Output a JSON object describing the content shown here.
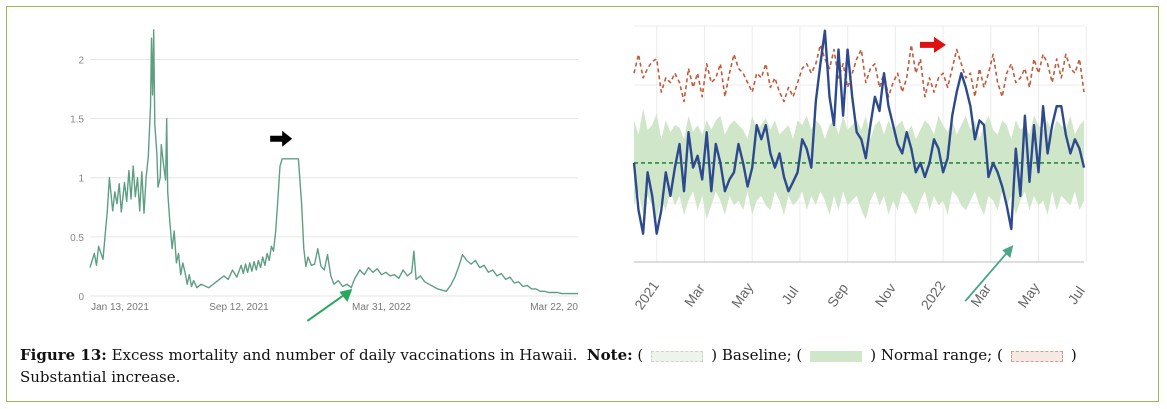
{
  "chart_data": [
    {
      "type": "line",
      "title": "",
      "xlabel": "",
      "ylabel": "",
      "x_tick_labels": [
        "Jan 13, 2021",
        "Sep 12, 2021",
        "Mar 31, 2022",
        "Mar 22, 20"
      ],
      "y_tick_labels": [
        "0",
        "0.5",
        "1",
        "1.5",
        "2"
      ],
      "ylim": [
        0,
        2.3
      ],
      "grid": "horizontal",
      "series": [
        {
          "color": "#5e9f83",
          "points": [
            [
              0,
              0.24
            ],
            [
              4,
              0.36
            ],
            [
              6,
              0.26
            ],
            [
              8,
              0.42
            ],
            [
              12,
              0.31
            ],
            [
              16,
              0.72
            ],
            [
              18,
              1.0
            ],
            [
              21,
              0.72
            ],
            [
              23,
              0.88
            ],
            [
              25,
              0.78
            ],
            [
              27,
              0.95
            ],
            [
              29,
              0.71
            ],
            [
              32,
              0.96
            ],
            [
              34,
              0.8
            ],
            [
              36,
              1.06
            ],
            [
              38,
              0.82
            ],
            [
              40,
              1.1
            ],
            [
              42,
              0.84
            ],
            [
              44,
              1.0
            ],
            [
              46,
              0.72
            ],
            [
              48,
              1.05
            ],
            [
              50,
              0.7
            ],
            [
              52,
              1.0
            ],
            [
              54,
              1.18
            ],
            [
              56,
              1.6
            ],
            [
              57,
              2.18
            ],
            [
              58,
              1.7
            ],
            [
              59,
              2.25
            ],
            [
              60,
              1.45
            ],
            [
              62,
              1.2
            ],
            [
              63,
              0.92
            ],
            [
              65,
              1.0
            ],
            [
              66,
              1.28
            ],
            [
              68,
              1.12
            ],
            [
              70,
              0.98
            ],
            [
              71,
              1.5
            ],
            [
              72,
              0.88
            ],
            [
              74,
              0.62
            ],
            [
              76,
              0.4
            ],
            [
              78,
              0.55
            ],
            [
              80,
              0.28
            ],
            [
              82,
              0.36
            ],
            [
              84,
              0.18
            ],
            [
              86,
              0.28
            ],
            [
              88,
              0.2
            ],
            [
              90,
              0.1
            ],
            [
              92,
              0.18
            ],
            [
              94,
              0.08
            ],
            [
              96,
              0.13
            ],
            [
              99,
              0.07
            ],
            [
              103,
              0.1
            ],
            [
              110,
              0.07
            ],
            [
              117,
              0.12
            ],
            [
              124,
              0.17
            ],
            [
              128,
              0.14
            ],
            [
              132,
              0.22
            ],
            [
              136,
              0.16
            ],
            [
              140,
              0.26
            ],
            [
              142,
              0.19
            ],
            [
              144,
              0.27
            ],
            [
              146,
              0.2
            ],
            [
              148,
              0.28
            ],
            [
              150,
              0.21
            ],
            [
              152,
              0.29
            ],
            [
              154,
              0.22
            ],
            [
              156,
              0.3
            ],
            [
              158,
              0.24
            ],
            [
              160,
              0.33
            ],
            [
              162,
              0.26
            ],
            [
              164,
              0.36
            ],
            [
              166,
              0.3
            ],
            [
              168,
              0.42
            ],
            [
              170,
              0.38
            ],
            [
              172,
              0.55
            ],
            [
              174,
              0.82
            ],
            [
              176,
              1.1
            ],
            [
              178,
              1.16
            ],
            [
              193,
              1.16
            ],
            [
              196,
              0.78
            ],
            [
              198,
              0.4
            ],
            [
              200,
              0.25
            ],
            [
              202,
              0.33
            ],
            [
              205,
              0.26
            ],
            [
              208,
              0.27
            ],
            [
              211,
              0.4
            ],
            [
              214,
              0.25
            ],
            [
              217,
              0.22
            ],
            [
              220,
              0.35
            ],
            [
              223,
              0.17
            ],
            [
              226,
              0.1
            ],
            [
              230,
              0.13
            ],
            [
              234,
              0.08
            ],
            [
              238,
              0.1
            ],
            [
              242,
              0.07
            ],
            [
              244,
              0.12
            ],
            [
              246,
              0.16
            ],
            [
              250,
              0.22
            ],
            [
              254,
              0.18
            ],
            [
              258,
              0.24
            ],
            [
              262,
              0.2
            ],
            [
              266,
              0.23
            ],
            [
              270,
              0.18
            ],
            [
              274,
              0.2
            ],
            [
              278,
              0.17
            ],
            [
              282,
              0.18
            ],
            [
              286,
              0.15
            ],
            [
              290,
              0.22
            ],
            [
              294,
              0.17
            ],
            [
              298,
              0.2
            ],
            [
              300,
              0.38
            ],
            [
              302,
              0.14
            ],
            [
              306,
              0.17
            ],
            [
              310,
              0.12
            ],
            [
              314,
              0.1
            ],
            [
              318,
              0.08
            ],
            [
              322,
              0.06
            ],
            [
              326,
              0.05
            ],
            [
              330,
              0.04
            ],
            [
              334,
              0.09
            ],
            [
              338,
              0.16
            ],
            [
              342,
              0.26
            ],
            [
              345,
              0.35
            ],
            [
              349,
              0.3
            ],
            [
              353,
              0.27
            ],
            [
              357,
              0.3
            ],
            [
              361,
              0.24
            ],
            [
              365,
              0.26
            ],
            [
              369,
              0.2
            ],
            [
              373,
              0.22
            ],
            [
              377,
              0.17
            ],
            [
              381,
              0.19
            ],
            [
              385,
              0.14
            ],
            [
              389,
              0.16
            ],
            [
              393,
              0.11
            ],
            [
              397,
              0.12
            ],
            [
              401,
              0.08
            ],
            [
              405,
              0.09
            ],
            [
              409,
              0.06
            ],
            [
              413,
              0.06
            ],
            [
              417,
              0.04
            ],
            [
              421,
              0.04
            ],
            [
              425,
              0.03
            ],
            [
              429,
              0.03
            ],
            [
              433,
              0.03
            ],
            [
              437,
              0.02
            ],
            [
              441,
              0.02
            ],
            [
              445,
              0.02
            ],
            [
              449,
              0.02
            ],
            [
              452,
              0.02
            ]
          ]
        }
      ],
      "annotations": [
        {
          "type": "arrow",
          "direction": "right",
          "color": "#000000",
          "at_x": 178,
          "at_y": 1.33
        },
        {
          "type": "arrow",
          "direction": "up-right",
          "color": "#27a85d",
          "target_x": 243,
          "target_y": 0.06
        }
      ]
    },
    {
      "type": "line",
      "title": "",
      "xlabel": "",
      "ylabel": "",
      "x_tick_labels": [
        "2021",
        "Mar",
        "May",
        "Jul",
        "Sep",
        "Nov",
        "2022",
        "Mar",
        "May",
        "Jul"
      ],
      "ylim": [
        0,
        100
      ],
      "grid": "both",
      "series": [
        {
          "name": "",
          "style": "solid",
          "color": "#2e4a8e",
          "values": [
            42,
            22,
            12,
            38,
            28,
            12,
            22,
            38,
            28,
            40,
            50,
            30,
            55,
            40,
            45,
            35,
            55,
            30,
            50,
            42,
            30,
            35,
            38,
            50,
            42,
            32,
            40,
            58,
            52,
            58,
            46,
            40,
            46,
            36,
            30,
            34,
            38,
            52,
            48,
            40,
            68,
            84,
            98,
            70,
            58,
            90,
            62,
            90,
            70,
            55,
            52,
            44,
            58,
            70,
            64,
            80,
            66,
            58,
            50,
            46,
            55,
            48,
            38,
            42,
            36,
            42,
            52,
            48,
            38,
            44,
            62,
            72,
            80,
            74,
            66,
            52,
            60,
            58,
            36,
            42,
            38,
            32,
            24,
            14,
            48,
            28,
            62,
            34,
            58,
            38,
            66,
            46,
            58,
            66,
            66,
            54,
            46,
            52,
            48,
            40
          ]
        },
        {
          "name": "",
          "style": "dashed",
          "color": "#c15b3c",
          "values": [
            80,
            88,
            78,
            82,
            85,
            86,
            72,
            78,
            76,
            80,
            76,
            68,
            82,
            74,
            80,
            70,
            84,
            76,
            78,
            84,
            70,
            80,
            88,
            82,
            80,
            76,
            72,
            80,
            78,
            84,
            74,
            78,
            72,
            68,
            74,
            70,
            76,
            82,
            84,
            80,
            84,
            92,
            86,
            82,
            90,
            78,
            84,
            74,
            80,
            86,
            90,
            76,
            82,
            84,
            74,
            80,
            70,
            76,
            80,
            72,
            78,
            92,
            80,
            86,
            70,
            78,
            72,
            78,
            80,
            74,
            82,
            90,
            84,
            78,
            80,
            70,
            82,
            74,
            80,
            88,
            76,
            70,
            80,
            84,
            76,
            78,
            82,
            74,
            86,
            80,
            88,
            84,
            76,
            86,
            78,
            88,
            82,
            80,
            86,
            72
          ]
        },
        {
          "name": "",
          "style": "dashed",
          "color": "#2a8a3a",
          "values": [
            42,
            42,
            42,
            42,
            42,
            42,
            42,
            42,
            42,
            42,
            42,
            42,
            42,
            42,
            42,
            42,
            42,
            42,
            42,
            42,
            42,
            42,
            42,
            42,
            42,
            42,
            42,
            42,
            42,
            42,
            42,
            42,
            42,
            42,
            42,
            42,
            42,
            42,
            42,
            42,
            42,
            42,
            42,
            42,
            42,
            42,
            42,
            42,
            42,
            42,
            42,
            42,
            42,
            42,
            42,
            42,
            42,
            42,
            42,
            42,
            42,
            42,
            42,
            42,
            42,
            42,
            42,
            42,
            42,
            42,
            42,
            42,
            42,
            42,
            42,
            42,
            42,
            42,
            42,
            42,
            42,
            42,
            42,
            42,
            42,
            42,
            42,
            42,
            42,
            42,
            42,
            42,
            42,
            42,
            42,
            42,
            42,
            42,
            42,
            42
          ]
        }
      ],
      "band": {
        "color": "#cfe6c8",
        "upper": [
          60,
          54,
          65,
          56,
          58,
          63,
          52,
          60,
          55,
          58,
          57,
          52,
          62,
          55,
          58,
          54,
          60,
          56,
          60,
          62,
          54,
          58,
          60,
          58,
          56,
          52,
          62,
          56,
          58,
          61,
          56,
          60,
          54,
          56,
          58,
          52,
          60,
          58,
          62,
          56,
          60,
          58,
          52,
          58,
          60,
          54,
          62,
          56,
          58,
          60,
          56,
          62,
          52,
          58,
          60,
          54,
          60,
          56,
          58,
          60,
          54,
          58,
          52,
          56,
          60,
          58,
          54,
          62,
          58,
          55,
          60,
          54,
          58,
          62,
          56,
          60,
          52,
          58,
          62,
          56,
          54,
          60,
          58,
          52,
          60,
          56,
          58,
          54,
          62,
          58,
          56,
          60,
          54,
          60,
          58,
          56,
          62,
          54,
          58,
          60
        ],
        "lower": [
          24,
          30,
          20,
          28,
          24,
          18,
          26,
          22,
          30,
          24,
          28,
          20,
          26,
          30,
          22,
          28,
          18,
          24,
          30,
          26,
          20,
          28,
          24,
          26,
          22,
          30,
          20,
          26,
          28,
          24,
          22,
          30,
          26,
          20,
          28,
          24,
          26,
          30,
          22,
          28,
          24,
          30,
          26,
          20,
          28,
          22,
          30,
          24,
          26,
          28,
          22,
          18,
          26,
          30,
          24,
          28,
          20,
          26,
          22,
          30,
          28,
          24,
          20,
          26,
          30,
          22,
          28,
          24,
          26,
          20,
          30,
          28,
          24,
          22,
          26,
          30,
          24,
          20,
          28,
          26,
          22,
          30,
          24,
          28,
          20,
          26,
          30,
          22,
          28,
          24,
          26,
          20,
          30,
          22,
          28,
          26,
          24,
          30,
          22,
          26
        ]
      },
      "annotations": [
        {
          "type": "arrow",
          "direction": "right",
          "color": "#dd1111",
          "at_index": 66,
          "at_value": 92
        },
        {
          "type": "arrow",
          "direction": "up-right",
          "color": "#4aa58a",
          "target_index": 83,
          "target_value": 8
        }
      ]
    }
  ],
  "caption": {
    "label": "Figure 13:",
    "text": " Excess mortality and number of daily vaccinations in Hawaii.",
    "note_label": "Note:",
    "baseline_label": ") Baseline; (",
    "normal_label": ") Normal range; (",
    "substantial_label": ") Substantial increase."
  }
}
